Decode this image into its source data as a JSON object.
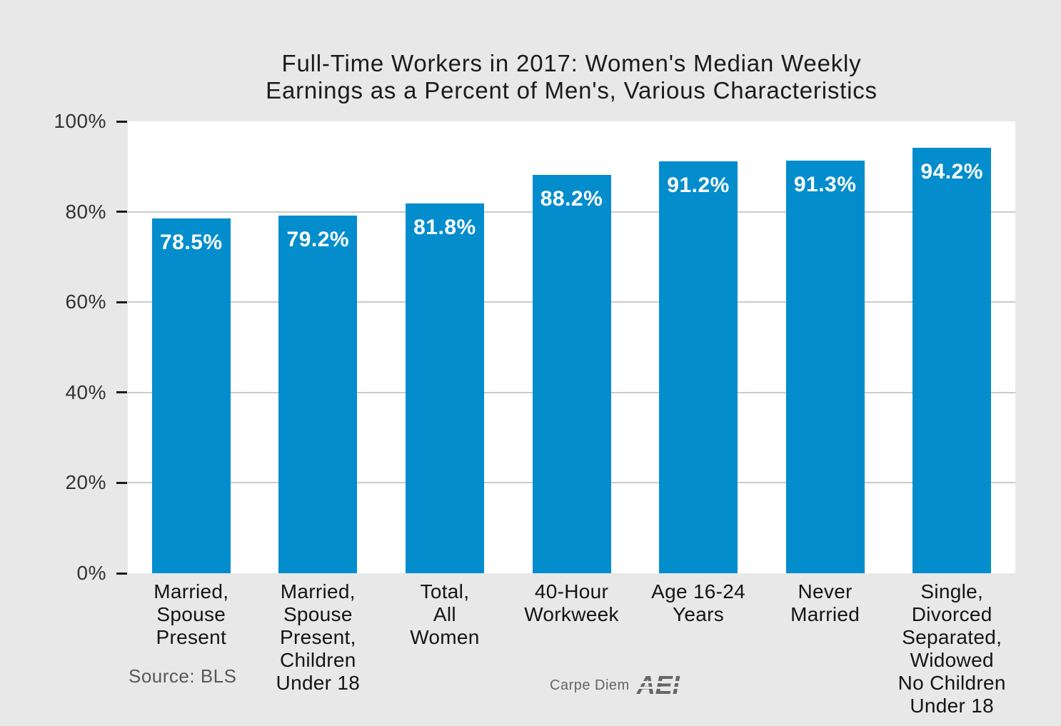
{
  "page": {
    "background": "#e8e8e8",
    "plot_background": "#ffffff"
  },
  "chart_data": {
    "type": "bar",
    "title": "Full-Time Workers in 2017: Women's Median Weekly Earnings as a Percent of Men's, Various Characteristics",
    "title_lines": [
      "Full-Time Workers in 2017: Women's Median Weekly",
      "Earnings as a Percent of Men's, Various Characteristics"
    ],
    "categories": [
      "Married,\nSpouse\nPresent",
      "Married,\nSpouse\nPresent,\nChildren\nUnder 18",
      "Total,\nAll\nWomen",
      "40-Hour\nWorkweek",
      "Age 16-24\nYears",
      "Never\nMarried",
      "Single,\nDivorced\nSeparated,\nWidowed\nNo Children\nUnder 18"
    ],
    "values": [
      78.5,
      79.2,
      81.8,
      88.2,
      91.2,
      91.3,
      94.2
    ],
    "value_labels": [
      "78.5%",
      "79.2%",
      "81.8%",
      "88.2%",
      "91.2%",
      "91.3%",
      "94.2%"
    ],
    "xlabel": "",
    "ylabel": "",
    "ylim": [
      0,
      100
    ],
    "ytick_values": [
      0,
      20,
      40,
      60,
      80,
      100
    ],
    "ytick_labels": [
      "0%",
      "20%",
      "40%",
      "60%",
      "80%",
      "100%"
    ],
    "grid": true,
    "legend": false,
    "bar_color": "#038dcd",
    "value_label_color": "#ffffff",
    "grid_color": "#cacaca"
  },
  "footer": {
    "source": "Source: BLS",
    "brand_text": "Carpe Diem",
    "brand_logo": "AEI"
  }
}
